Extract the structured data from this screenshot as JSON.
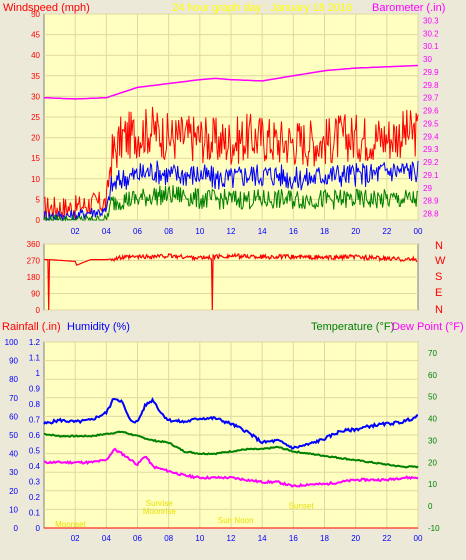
{
  "header": {
    "left_label": "Windspeed (mph)",
    "title": "24 hour graph day : January 18 2016",
    "right_label": "Barometer (.in)"
  },
  "direction_letters": [
    "N",
    "W",
    "S",
    "E",
    "N"
  ],
  "bottom_labels": {
    "rainfall": "Rainfall (.in)",
    "humidity": "Humidity (%)",
    "temperature": "Temperature (°F)",
    "dewpoint": "Dew Point (°F)"
  },
  "annotations": [
    {
      "text": "Moonset",
      "hour": 1.7,
      "temp": -9.5
    },
    {
      "text": "Sunrise",
      "hour": 7.4,
      "temp": 0
    },
    {
      "text": "Moonrise",
      "hour": 7.4,
      "temp": -3.5
    },
    {
      "text": "Sun Noon",
      "hour": 12.3,
      "temp": -7.8
    },
    {
      "text": "Sunset",
      "hour": 16.5,
      "temp": -1.2
    }
  ],
  "colors": {
    "wind_gust": "#ff0000",
    "wind_avg": "#0000ff",
    "wind_low": "#008000",
    "barometer": "#ff00ff",
    "temperature": "#008000",
    "dewpoint": "#ff00ff",
    "humidity": "#0000ff",
    "rainfall": "#ff0000",
    "plot_bg": "#ffffc0"
  },
  "chart_data": [
    {
      "type": "line",
      "x_ticks": [
        "02",
        "04",
        "06",
        "08",
        "10",
        "12",
        "14",
        "16",
        "18",
        "20",
        "22",
        "00"
      ],
      "x_range_hours": [
        0,
        24
      ],
      "y_left": {
        "ticks": [
          0,
          5,
          10,
          15,
          20,
          25,
          30,
          35,
          40,
          45,
          50
        ],
        "range": [
          0,
          50
        ]
      },
      "y_right": {
        "ticks": [
          28.8,
          28.9,
          29,
          29.1,
          29.2,
          29.3,
          29.4,
          29.5,
          29.6,
          29.7,
          29.8,
          29.9,
          30,
          30.1,
          30.2,
          30.3
        ],
        "range": [
          28.75,
          30.35
        ]
      },
      "series": [
        {
          "name": "Windspeed gust",
          "hours": [
            0,
            1,
            2,
            3,
            4,
            4.3,
            5,
            6,
            7,
            8,
            9,
            10,
            11,
            12,
            13,
            14,
            15,
            16,
            17,
            18,
            19,
            20,
            21,
            22,
            23,
            24
          ],
          "values": [
            3,
            3,
            3,
            4,
            4,
            15,
            20,
            21,
            22,
            20,
            20,
            20,
            19,
            19,
            20,
            20,
            19,
            19,
            19,
            19,
            20,
            20,
            20,
            20,
            21,
            21
          ]
        },
        {
          "name": "Windspeed average",
          "hours": [
            0,
            1,
            2,
            3,
            4,
            4.3,
            5,
            6,
            7,
            8,
            9,
            10,
            11,
            12,
            13,
            14,
            15,
            16,
            17,
            18,
            19,
            20,
            21,
            22,
            23,
            24
          ],
          "values": [
            1,
            1,
            1,
            2,
            2,
            8,
            10,
            11,
            12,
            11,
            11,
            11,
            10,
            10,
            11,
            11,
            11,
            10,
            10,
            11,
            11,
            11,
            11,
            12,
            12,
            12
          ]
        },
        {
          "name": "Windspeed low",
          "hours": [
            0,
            1,
            2,
            3,
            4,
            4.3,
            5,
            6,
            7,
            8,
            9,
            10,
            11,
            12,
            13,
            14,
            15,
            16,
            17,
            18,
            19,
            20,
            21,
            22,
            23,
            24
          ],
          "values": [
            0,
            0,
            0,
            0,
            0,
            4,
            5,
            5,
            6,
            6,
            6,
            5,
            5,
            5,
            5,
            5,
            5,
            5,
            5,
            5,
            5,
            5,
            5,
            5,
            5,
            5
          ]
        },
        {
          "name": "Barometer",
          "hours": [
            0,
            2,
            4,
            6,
            8,
            10,
            11,
            12,
            14,
            16,
            18,
            20,
            22,
            24
          ],
          "values": [
            29.7,
            29.69,
            29.7,
            29.78,
            29.81,
            29.84,
            29.85,
            29.84,
            29.83,
            29.87,
            29.91,
            29.93,
            29.94,
            29.95
          ]
        }
      ]
    },
    {
      "type": "line",
      "x_range_hours": [
        0,
        24
      ],
      "y_left": {
        "ticks": [
          0,
          90,
          180,
          270,
          360
        ],
        "range": [
          0,
          360
        ]
      },
      "series": [
        {
          "name": "Wind direction",
          "hours": [
            0,
            0.1,
            0.25,
            0.3,
            0.35,
            2,
            2.1,
            3,
            4,
            5,
            6,
            8,
            10,
            10.75,
            10.8,
            10.85,
            12,
            14,
            16,
            18,
            20,
            22,
            24
          ],
          "values": [
            275,
            275,
            275,
            0,
            275,
            265,
            245,
            275,
            275,
            285,
            290,
            295,
            285,
            285,
            0,
            290,
            295,
            290,
            290,
            285,
            290,
            280,
            275
          ]
        }
      ]
    },
    {
      "type": "line",
      "x_range_hours": [
        0,
        24
      ],
      "y_humidity": {
        "ticks": [
          0,
          10,
          20,
          30,
          40,
          50,
          60,
          70,
          80,
          90,
          100
        ],
        "range": [
          0,
          100
        ]
      },
      "y_rain": {
        "ticks": [
          0,
          0.1,
          0.2,
          0.3,
          0.4,
          0.5,
          0.6,
          0.7,
          0.8,
          0.9,
          1,
          1.1,
          1.2
        ],
        "range": [
          0,
          1.2
        ]
      },
      "y_temp": {
        "ticks": [
          -10,
          0,
          10,
          20,
          30,
          40,
          50,
          60,
          70
        ],
        "range": [
          -10,
          75
        ]
      },
      "series": [
        {
          "name": "Humidity",
          "hours": [
            0,
            1,
            2,
            3,
            4,
            4.5,
            5,
            5.5,
            6,
            6.5,
            7,
            7.5,
            8,
            9,
            10,
            11,
            12,
            13,
            14,
            15,
            16,
            17,
            18,
            19,
            20,
            21,
            22,
            23,
            24
          ],
          "values": [
            56,
            58,
            57,
            58,
            62,
            70,
            68,
            58,
            57,
            66,
            69,
            62,
            58,
            57,
            59,
            59,
            56,
            52,
            46,
            47,
            43,
            45,
            48,
            52,
            53,
            55,
            56,
            57,
            60
          ]
        },
        {
          "name": "Temperature",
          "hours": [
            0,
            1,
            2,
            3,
            4,
            5,
            6,
            7,
            8,
            9,
            10,
            11,
            12,
            13,
            14,
            15,
            16,
            17,
            18,
            19,
            20,
            21,
            22,
            23,
            24
          ],
          "values": [
            33,
            32,
            32,
            32,
            33,
            34,
            32,
            30,
            29,
            25,
            24,
            24,
            25,
            26,
            26,
            27,
            25,
            24,
            23,
            22,
            21,
            20,
            19,
            18,
            18
          ]
        },
        {
          "name": "Dew Point",
          "hours": [
            0,
            1,
            2,
            3,
            4,
            4.5,
            5,
            6,
            6.5,
            7,
            7.5,
            8,
            9,
            10,
            11,
            12,
            13,
            14,
            15,
            16,
            17,
            18,
            19,
            20,
            21,
            22,
            23,
            24
          ],
          "values": [
            20,
            20,
            20,
            20,
            21,
            26,
            24,
            19,
            23,
            18,
            17,
            16,
            14,
            13,
            13,
            13,
            12,
            11,
            11,
            9,
            10,
            10,
            11,
            12,
            12,
            12,
            13,
            13
          ]
        },
        {
          "name": "Rainfall",
          "hours": [
            0,
            24
          ],
          "values": [
            0,
            0
          ]
        }
      ]
    }
  ]
}
